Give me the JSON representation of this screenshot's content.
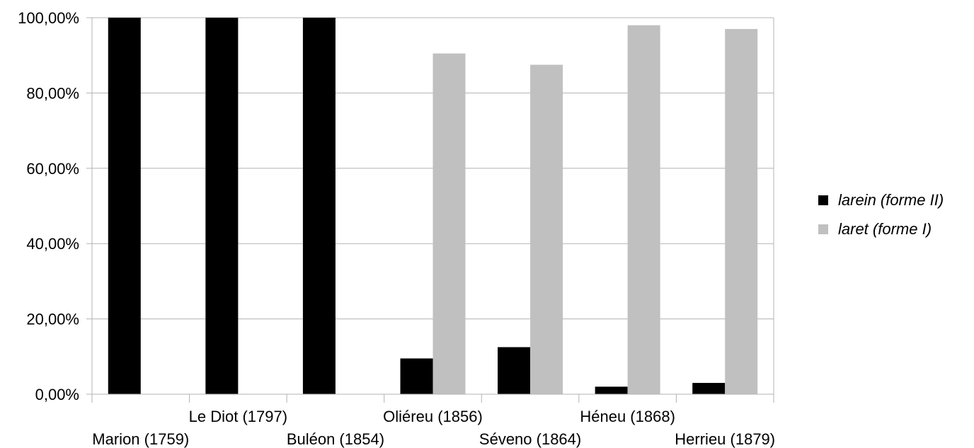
{
  "chart_data": {
    "type": "bar",
    "categories": [
      "Marion (1759)",
      "Le Diot (1797)",
      "Buléon (1854)",
      "Oliéreu (1856)",
      "Séveno (1864)",
      "Héneu (1868)",
      "Herrieu (1879)"
    ],
    "series": [
      {
        "name": "larein (forme II)",
        "color": "#000000",
        "values": [
          100,
          100,
          100,
          9.5,
          12.5,
          2,
          3
        ]
      },
      {
        "name": "laret (forme I)",
        "color": "#c0c0c0",
        "values": [
          0,
          0,
          0,
          90.5,
          87.5,
          98,
          97
        ]
      }
    ],
    "ylim": [
      0,
      100
    ],
    "yticks": [
      0,
      20,
      40,
      60,
      80,
      100
    ],
    "ytick_labels": [
      "0,00%",
      "20,00%",
      "40,00%",
      "60,00%",
      "80,00%",
      "100,00%"
    ],
    "grid": true,
    "legend_position": "right",
    "title": "",
    "xlabel": "",
    "ylabel": ""
  }
}
